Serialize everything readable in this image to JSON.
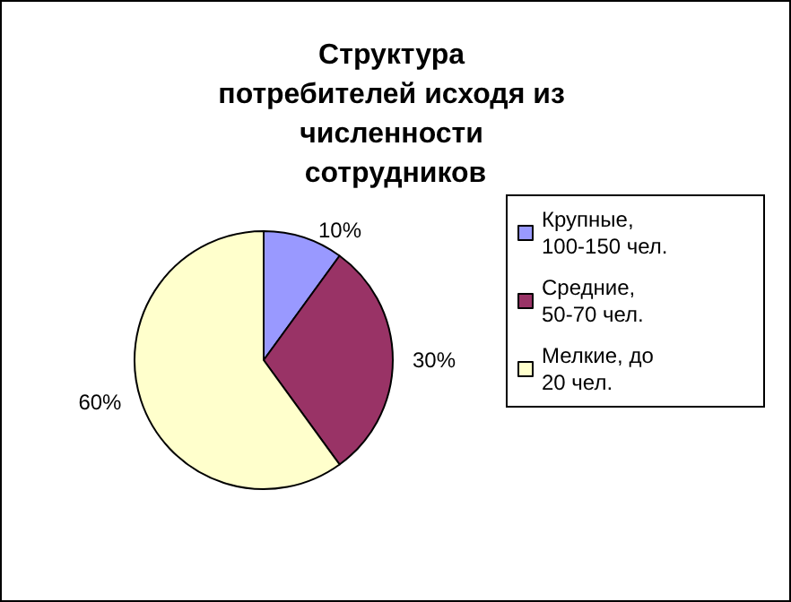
{
  "chart_data": {
    "type": "pie",
    "title": "Структура потребителей исходя из численности сотрудников",
    "categories": [
      "Крупные, 100-150 чел.",
      "Средние, 50-70 чел.",
      "Мелкие, до 20 чел."
    ],
    "values": [
      10,
      30,
      60
    ],
    "value_labels": [
      "10%",
      "30%",
      "60%"
    ],
    "colors": [
      "#9999ff",
      "#993366",
      "#ffffcc"
    ],
    "legend": "right"
  }
}
